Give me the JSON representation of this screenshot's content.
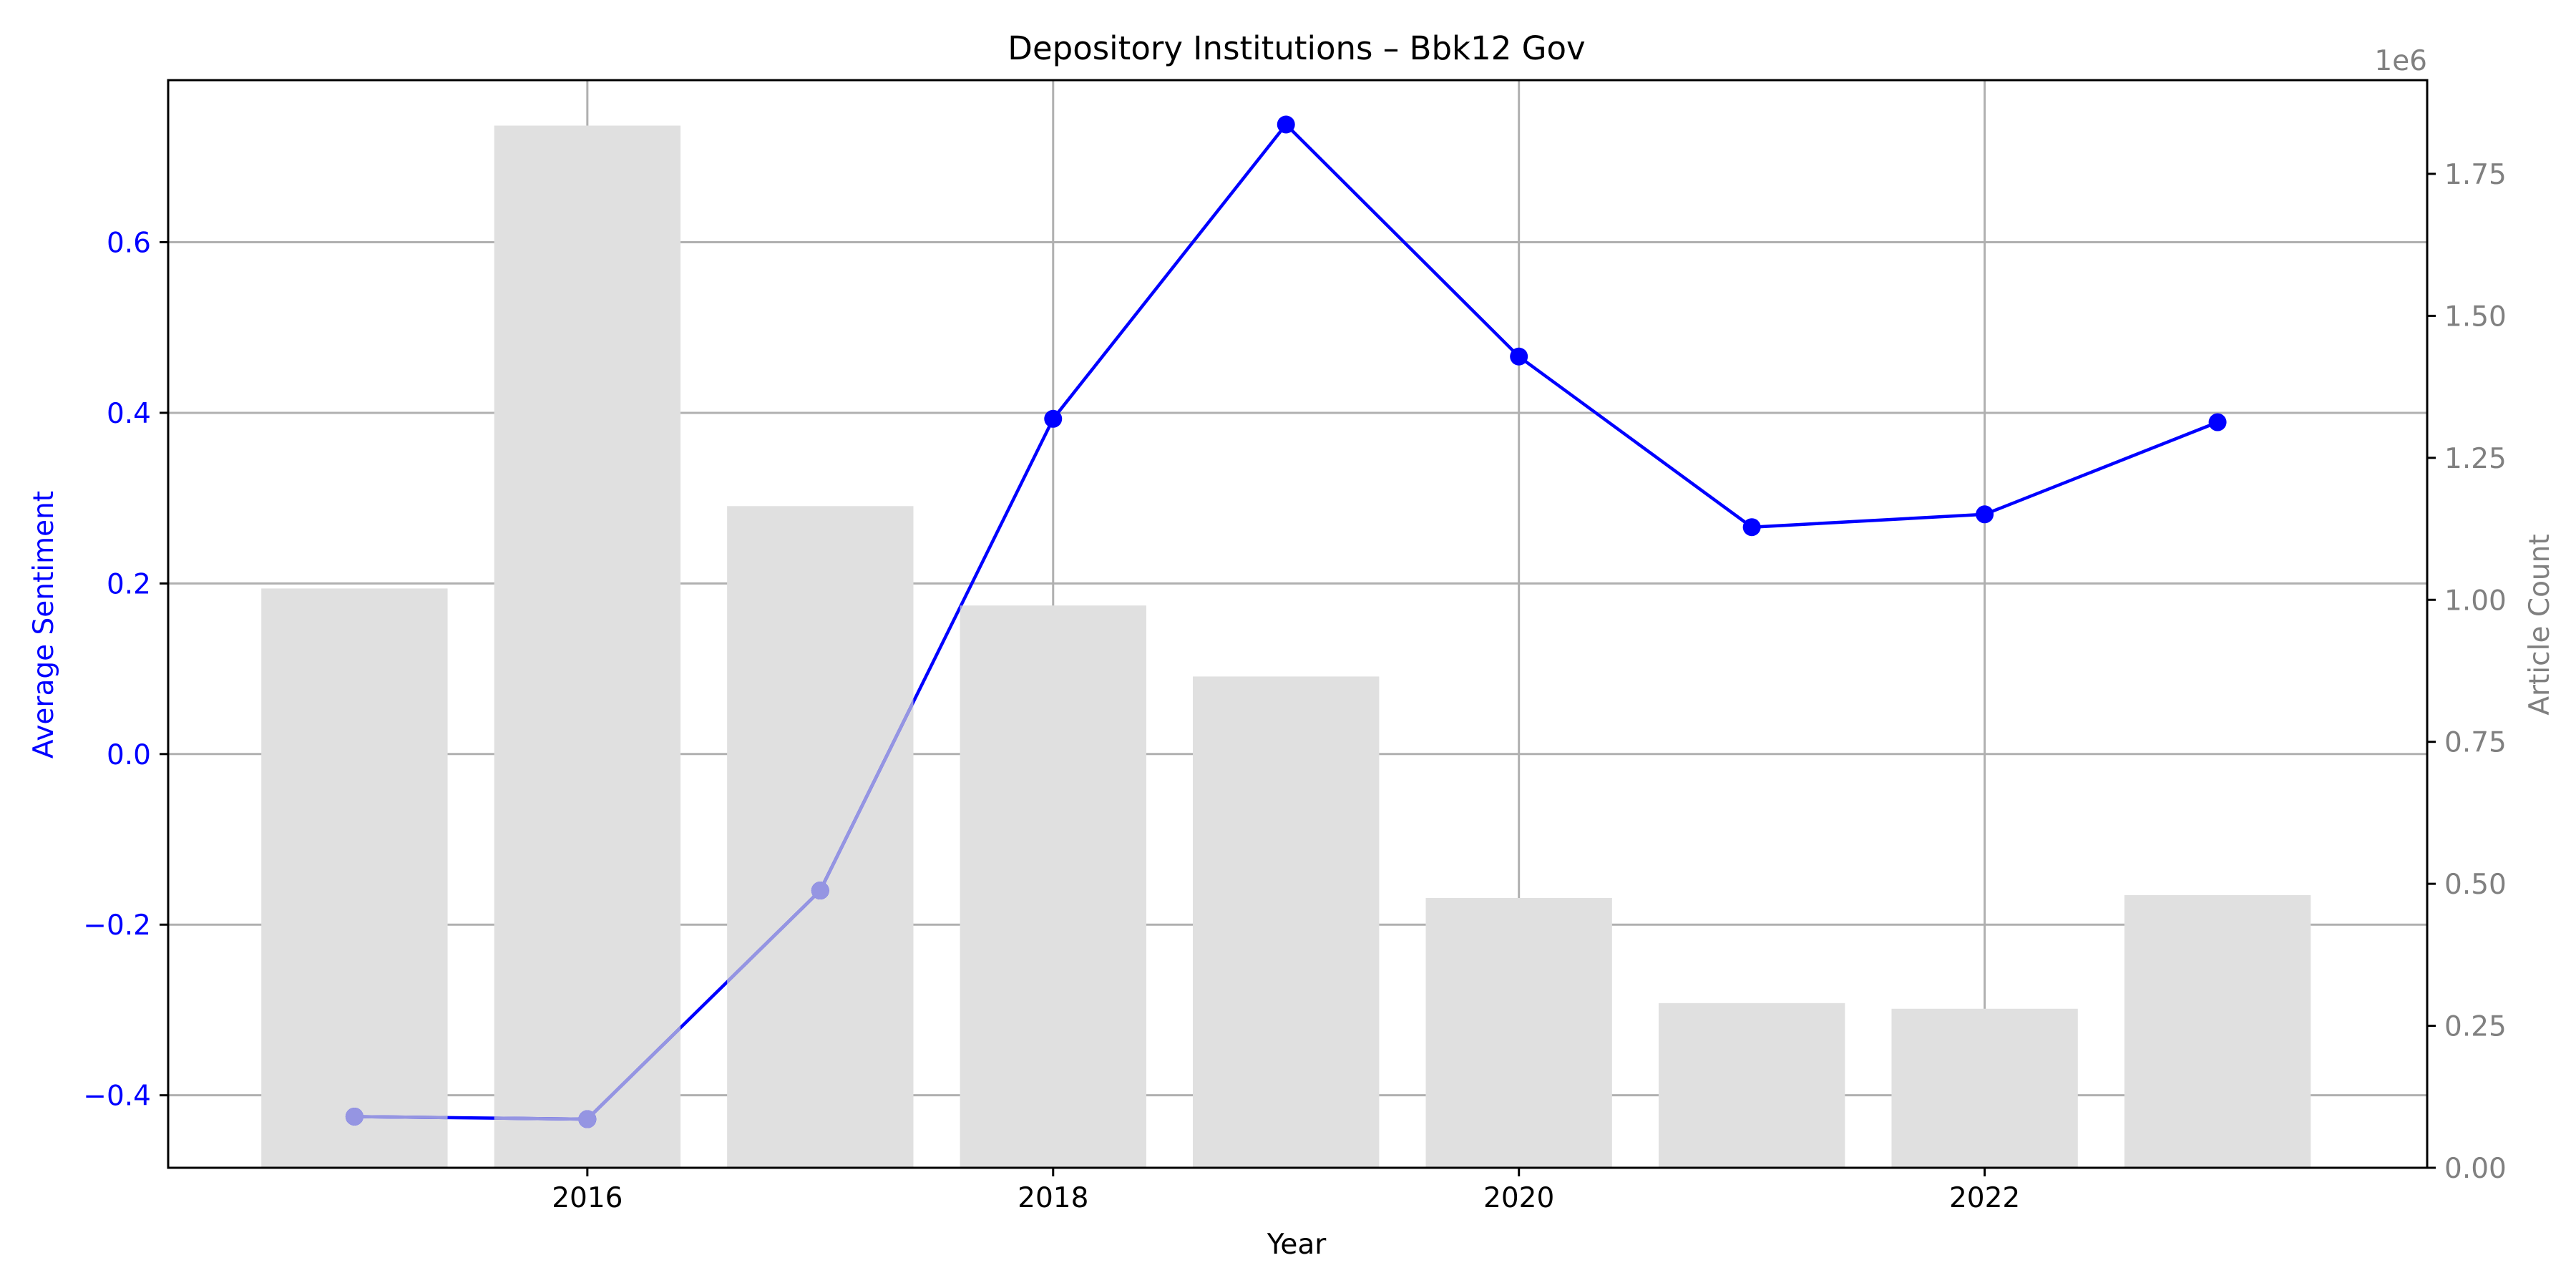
{
  "chart_data": {
    "type": "bar+line",
    "title": "Depository Institutions – Bbk12 Gov",
    "xlabel": "Year",
    "ylabel_left": "Average Sentiment",
    "ylabel_right": "Article Count",
    "right_axis_offset_label": "1e6",
    "grid": true,
    "xlim": [
      2014.2,
      2023.9
    ],
    "ylim_left": [
      -0.485,
      0.79
    ],
    "ylim_right": [
      0,
      1.915
    ],
    "x_ticks": [
      2016,
      2018,
      2020,
      2022
    ],
    "x_tick_labels": [
      "2016",
      "2018",
      "2020",
      "2022"
    ],
    "y_left_ticks": [
      -0.4,
      -0.2,
      0.0,
      0.2,
      0.4,
      0.6
    ],
    "y_left_tick_labels": [
      "−0.4",
      "−0.2",
      "0.0",
      "0.2",
      "0.4",
      "0.6"
    ],
    "y_right_ticks": [
      0.0,
      0.25,
      0.5,
      0.75,
      1.0,
      1.25,
      1.5,
      1.75
    ],
    "y_right_tick_labels": [
      "0.00",
      "0.25",
      "0.50",
      "0.75",
      "1.00",
      "1.25",
      "1.50",
      "1.75"
    ],
    "x": [
      2015,
      2016,
      2017,
      2018,
      2019,
      2020,
      2021,
      2022,
      2023
    ],
    "series": [
      {
        "kind": "bar",
        "axis": "right",
        "values": [
          1.02,
          1.835,
          1.165,
          0.99,
          0.865,
          0.475,
          0.29,
          0.28,
          0.48
        ]
      },
      {
        "kind": "line",
        "axis": "left",
        "values": [
          -0.425,
          -0.428,
          -0.16,
          0.393,
          0.738,
          0.466,
          0.266,
          0.281,
          0.389
        ]
      }
    ],
    "colors": {
      "bar": "#e0e0e0",
      "line": "#0000ff",
      "line_faded": "#9595e2",
      "left_axis": "#0000ff",
      "right_axis": "#808080",
      "grid": "#b0b0b0",
      "text": "#000000"
    }
  }
}
